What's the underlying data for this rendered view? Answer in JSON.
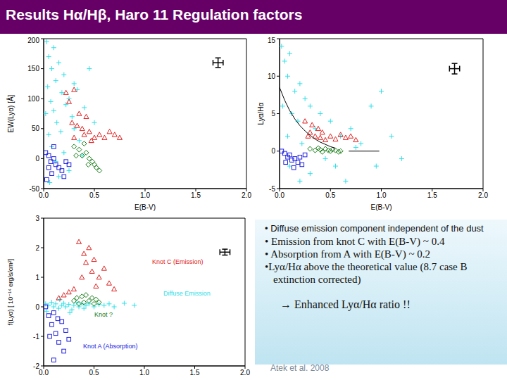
{
  "title": "Results Hα/Hβ, Haro 11 Regulation factors",
  "chart_data": [
    {
      "type": "scatter",
      "xlabel": "E(B-V)",
      "ylabel": "EW(Lyα) [Å]",
      "xlim": [
        0,
        2
      ],
      "ylim": [
        -50,
        200
      ],
      "xticks": [
        {
          "value": 0,
          "label": "0.0"
        },
        0.5,
        {
          "value": 1,
          "label": "1.0"
        },
        1.5,
        {
          "value": 2,
          "label": "2.0"
        }
      ],
      "yticks": [
        -50,
        0,
        50,
        100,
        150,
        200
      ],
      "typical_error": {
        "x": 1.72,
        "y": 160,
        "xerr": 0.05,
        "yerr": 8
      },
      "series": [
        {
          "color": "#2ee0e8",
          "marker": "plus",
          "points": [
            [
              0.03,
              195
            ],
            [
              0.05,
              170
            ],
            [
              0.08,
              150
            ],
            [
              0.1,
              185
            ],
            [
              0.12,
              130
            ],
            [
              0.04,
              120
            ],
            [
              0.15,
              160
            ],
            [
              0.18,
              110
            ],
            [
              0.2,
              140
            ],
            [
              0.07,
              95
            ],
            [
              0.1,
              80
            ],
            [
              0.22,
              90
            ],
            [
              0.25,
              100
            ],
            [
              0.13,
              60
            ],
            [
              0.05,
              40
            ],
            [
              0.17,
              45
            ],
            [
              0.28,
              70
            ],
            [
              0.3,
              50
            ],
            [
              0.08,
              20
            ],
            [
              0.2,
              10
            ],
            [
              0.33,
              115
            ],
            [
              0.12,
              -5
            ],
            [
              0.25,
              -20
            ],
            [
              0.06,
              -40
            ],
            [
              0.4,
              85
            ],
            [
              0.45,
              150
            ],
            [
              0.5,
              60
            ],
            [
              0.35,
              30
            ],
            [
              0.02,
              75
            ],
            [
              0.15,
              -30
            ],
            [
              0.3,
              125
            ],
            [
              0.38,
              5
            ]
          ]
        },
        {
          "color": "#e02020",
          "marker": "triangle",
          "points": [
            [
              0.22,
              110
            ],
            [
              0.25,
              95
            ],
            [
              0.3,
              115
            ],
            [
              0.28,
              60
            ],
            [
              0.33,
              55
            ],
            [
              0.35,
              75
            ],
            [
              0.38,
              50
            ],
            [
              0.4,
              40
            ],
            [
              0.42,
              70
            ],
            [
              0.45,
              45
            ],
            [
              0.5,
              35
            ],
            [
              0.55,
              40
            ],
            [
              0.6,
              35
            ],
            [
              0.65,
              45
            ],
            [
              0.7,
              40
            ],
            [
              0.75,
              35
            ],
            [
              0.3,
              35
            ],
            [
              0.47,
              30
            ]
          ]
        },
        {
          "color": "#2020e0",
          "marker": "square",
          "points": [
            [
              0.02,
              10
            ],
            [
              0.05,
              5
            ],
            [
              0.07,
              -5
            ],
            [
              0.1,
              0
            ],
            [
              0.12,
              -10
            ],
            [
              0.15,
              -15
            ],
            [
              0.08,
              -25
            ],
            [
              0.18,
              -20
            ],
            [
              0.2,
              -30
            ],
            [
              0.05,
              -15
            ],
            [
              0.22,
              -5
            ],
            [
              0.1,
              20
            ],
            [
              0.25,
              -10
            ],
            [
              0.03,
              -35
            ]
          ]
        },
        {
          "color": "#137a13",
          "marker": "diamond",
          "points": [
            [
              0.3,
              20
            ],
            [
              0.35,
              15
            ],
            [
              0.38,
              5
            ],
            [
              0.4,
              25
            ],
            [
              0.42,
              10
            ],
            [
              0.45,
              0
            ],
            [
              0.48,
              -5
            ],
            [
              0.5,
              -10
            ],
            [
              0.52,
              -15
            ],
            [
              0.55,
              -20
            ],
            [
              0.32,
              5
            ],
            [
              0.44,
              -10
            ]
          ]
        }
      ]
    },
    {
      "type": "scatter",
      "xlabel": "E(B-V)",
      "ylabel": "Lyα/Hα",
      "xlim": [
        0,
        2
      ],
      "ylim": [
        -5,
        15
      ],
      "xticks": [
        {
          "value": 0,
          "label": "0.0"
        },
        0.5,
        {
          "value": 1,
          "label": "1.0"
        },
        1.5,
        {
          "value": 2,
          "label": "2.0"
        }
      ],
      "yticks": [
        -5,
        0,
        5,
        10,
        15
      ],
      "typical_error": {
        "x": 1.72,
        "y": 11,
        "xerr": 0.05,
        "yerr": 0.7
      },
      "series": [
        {
          "color": "#2ee0e8",
          "marker": "plus",
          "points": [
            [
              0.02,
              14
            ],
            [
              0.05,
              12
            ],
            [
              0.08,
              10
            ],
            [
              0.1,
              13
            ],
            [
              0.15,
              8
            ],
            [
              0.2,
              9
            ],
            [
              0.25,
              7
            ],
            [
              0.3,
              6
            ],
            [
              0.03,
              6
            ],
            [
              0.12,
              5
            ],
            [
              0.18,
              4
            ],
            [
              0.35,
              3
            ],
            [
              0.4,
              5
            ],
            [
              0.5,
              4
            ],
            [
              0.6,
              2
            ],
            [
              0.7,
              3
            ],
            [
              0.8,
              1
            ],
            [
              0.9,
              6
            ],
            [
              1.0,
              8
            ],
            [
              1.1,
              2
            ],
            [
              0.45,
              -1
            ],
            [
              0.3,
              -3
            ],
            [
              0.2,
              -4
            ],
            [
              0.1,
              -2
            ],
            [
              0.55,
              -2
            ],
            [
              0.65,
              -4
            ],
            [
              0.08,
              2
            ],
            [
              0.22,
              1
            ],
            [
              1.2,
              -1
            ],
            [
              0.75,
              0.5
            ],
            [
              0.95,
              -2
            ]
          ]
        },
        {
          "color": "#e02020",
          "marker": "triangle",
          "points": [
            [
              0.25,
              4
            ],
            [
              0.3,
              2.5
            ],
            [
              0.32,
              3.5
            ],
            [
              0.35,
              2
            ],
            [
              0.38,
              3
            ],
            [
              0.4,
              1.8
            ],
            [
              0.42,
              2.5
            ],
            [
              0.45,
              1.5
            ],
            [
              0.5,
              2
            ],
            [
              0.55,
              1.6
            ],
            [
              0.6,
              2.2
            ],
            [
              0.65,
              1.8
            ],
            [
              0.7,
              2
            ],
            [
              0.75,
              1.5
            ],
            [
              0.28,
              2
            ]
          ]
        },
        {
          "color": "#2020e0",
          "marker": "square",
          "points": [
            [
              0.02,
              0
            ],
            [
              0.05,
              -0.3
            ],
            [
              0.08,
              -0.8
            ],
            [
              0.1,
              -0.5
            ],
            [
              0.12,
              -1.2
            ],
            [
              0.15,
              -1
            ],
            [
              0.18,
              -1.5
            ],
            [
              0.2,
              -0.8
            ],
            [
              0.22,
              -1.8
            ],
            [
              0.25,
              -0.5
            ],
            [
              0.06,
              -1.5
            ],
            [
              0.14,
              -2.2
            ]
          ]
        },
        {
          "color": "#137a13",
          "marker": "diamond",
          "points": [
            [
              0.3,
              0.3
            ],
            [
              0.35,
              0.1
            ],
            [
              0.38,
              0.4
            ],
            [
              0.4,
              0.2
            ],
            [
              0.42,
              -0.1
            ],
            [
              0.45,
              0.3
            ],
            [
              0.48,
              0.1
            ],
            [
              0.5,
              0
            ],
            [
              0.52,
              0.2
            ],
            [
              0.55,
              0.1
            ],
            [
              0.58,
              -0.1
            ],
            [
              0.6,
              0
            ]
          ]
        },
        {
          "type": "line",
          "color": "#000000",
          "points": [
            [
              0,
              8.5
            ],
            [
              0.05,
              6.8
            ],
            [
              0.1,
              5.4
            ],
            [
              0.15,
              4.3
            ],
            [
              0.2,
              3.4
            ],
            [
              0.25,
              2.7
            ],
            [
              0.3,
              2.1
            ],
            [
              0.35,
              1.6
            ],
            [
              0.4,
              1.2
            ],
            [
              0.45,
              0.9
            ],
            [
              0.5,
              0.6
            ],
            [
              0.55,
              0.4
            ]
          ]
        },
        {
          "type": "line",
          "color": "#000000",
          "points": [
            [
              0.68,
              0
            ],
            [
              0.98,
              0
            ]
          ]
        }
      ]
    },
    {
      "type": "scatter",
      "ylabel": "f(Lyα) [ 10⁻¹⁴ erg/s/cm²]",
      "xlim": [
        0,
        2
      ],
      "ylim": [
        -2,
        3
      ],
      "xticks": [
        {
          "value": 0,
          "label": "0.0"
        },
        0.5,
        {
          "value": 1,
          "label": "1.0"
        },
        1.5,
        {
          "value": 2,
          "label": "2.0"
        }
      ],
      "yticks": [
        -2,
        -1,
        0,
        1,
        2,
        3
      ],
      "typical_error": {
        "x": 1.8,
        "y": 1.85,
        "xerr": 0.05,
        "yerr": 0.1
      },
      "annotations": [
        {
          "text": "Knot C (Emission)",
          "color": "#e02020"
        },
        {
          "text": "Diffuse Emission",
          "color": "#2ee0e8"
        },
        {
          "text": "Knot ?",
          "color": "#137a13"
        },
        {
          "text": "Knot A (Absorption)",
          "color": "#2020e0"
        }
      ],
      "series": [
        {
          "color": "#2ee0e8",
          "marker": "plus",
          "points": [
            [
              0.02,
              0.1
            ],
            [
              0.05,
              0.05
            ],
            [
              0.08,
              0.15
            ],
            [
              0.1,
              0
            ],
            [
              0.12,
              0.1
            ],
            [
              0.15,
              -0.05
            ],
            [
              0.18,
              0.05
            ],
            [
              0.2,
              0.12
            ],
            [
              0.22,
              0
            ],
            [
              0.25,
              0.08
            ],
            [
              0.28,
              -0.1
            ],
            [
              0.3,
              0.05
            ],
            [
              0.33,
              0.15
            ],
            [
              0.35,
              0
            ],
            [
              0.38,
              0.1
            ],
            [
              0.4,
              -0.05
            ],
            [
              0.42,
              0.05
            ],
            [
              0.45,
              0.1
            ],
            [
              0.5,
              0
            ],
            [
              0.55,
              0.08
            ],
            [
              0.6,
              0.05
            ],
            [
              0.65,
              0.1
            ],
            [
              0.7,
              0
            ],
            [
              0.8,
              0.12
            ],
            [
              0.9,
              0.05
            ],
            [
              0.03,
              -0.15
            ],
            [
              0.16,
              0.25
            ],
            [
              0.26,
              -0.2
            ]
          ]
        },
        {
          "color": "#e02020",
          "marker": "triangle",
          "points": [
            [
              0.35,
              2.2
            ],
            [
              0.4,
              1.8
            ],
            [
              0.42,
              1.5
            ],
            [
              0.45,
              2.0
            ],
            [
              0.48,
              1.2
            ],
            [
              0.5,
              1.6
            ],
            [
              0.55,
              1.0
            ],
            [
              0.6,
              1.3
            ],
            [
              0.65,
              0.8
            ],
            [
              0.25,
              0.5
            ],
            [
              0.3,
              0.6
            ],
            [
              0.2,
              0.4
            ],
            [
              0.38,
              1.0
            ],
            [
              0.52,
              0.7
            ],
            [
              0.15,
              0.3
            ],
            [
              0.7,
              0.6
            ]
          ]
        },
        {
          "color": "#2020e0",
          "marker": "square",
          "points": [
            [
              0.02,
              0
            ],
            [
              0.05,
              -0.3
            ],
            [
              0.08,
              -0.6
            ],
            [
              0.1,
              -0.2
            ],
            [
              0.12,
              -0.9
            ],
            [
              0.15,
              -1.2
            ],
            [
              0.18,
              -0.5
            ],
            [
              0.2,
              -1.5
            ],
            [
              0.22,
              -0.8
            ],
            [
              0.25,
              -1.1
            ],
            [
              0.06,
              -1.0
            ],
            [
              0.14,
              -0.4
            ],
            [
              0.1,
              -1.8
            ]
          ]
        },
        {
          "color": "#137a13",
          "marker": "diamond",
          "points": [
            [
              0.3,
              0.2
            ],
            [
              0.35,
              0.1
            ],
            [
              0.38,
              0.35
            ],
            [
              0.4,
              0.15
            ],
            [
              0.42,
              0.4
            ],
            [
              0.45,
              0.2
            ],
            [
              0.48,
              0.3
            ],
            [
              0.5,
              0.1
            ],
            [
              0.52,
              0.25
            ],
            [
              0.55,
              0.15
            ],
            [
              0.33,
              0.3
            ]
          ]
        }
      ]
    }
  ],
  "text_box": {
    "bullets": [
      "• Diffuse emission component independent of the dust",
      "• Emission from knot C with E(B-V) ~ 0.4",
      "• Absorption from  A with E(B-V) ~ 0.2",
      "•Lyα/Hα above the theoretical value (8.7 case B extinction corrected)"
    ],
    "conclusion": "→ Enhanced Lyα/Hα ratio !!",
    "citation": "Atek et al. 2008"
  }
}
